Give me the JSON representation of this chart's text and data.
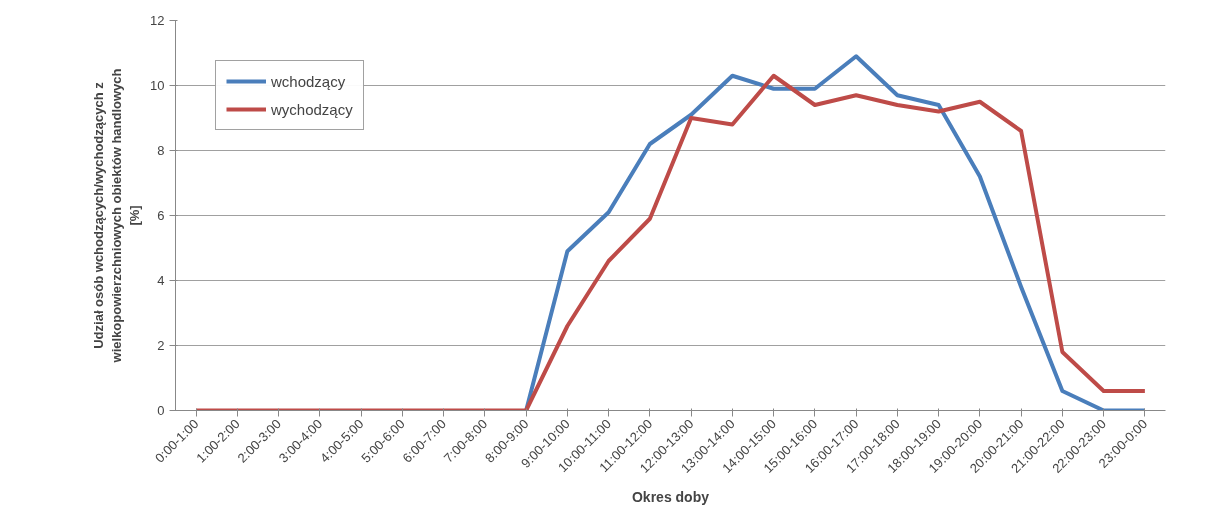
{
  "chart_data": {
    "type": "line",
    "xlabel": "Okres doby",
    "ylabel": "Udział osób wchodzących/wychodzących z wielkopowierzchniowych obiektów handlowych [%]",
    "categories": [
      "0:00-1:00",
      "1:00-2:00",
      "2:00-3:00",
      "3:00-4:00",
      "4:00-5:00",
      "5:00-6:00",
      "6:00-7:00",
      "7:00-8:00",
      "8:00-9:00",
      "9:00-10:00",
      "10:00-11:00",
      "11:00-12:00",
      "12:00-13:00",
      "13:00-14:00",
      "14:00-15:00",
      "15:00-16:00",
      "16:00-17:00",
      "17:00-18:00",
      "18:00-19:00",
      "19:00-20:00",
      "20:00-21:00",
      "21:00-22:00",
      "22:00-23:00",
      "23:00-0:00"
    ],
    "series": [
      {
        "name": "wchodzący",
        "color": "#4a7ebb",
        "values": [
          null,
          null,
          null,
          null,
          null,
          null,
          null,
          null,
          0,
          4.9,
          6.1,
          8.2,
          9.1,
          10.3,
          9.9,
          9.9,
          10.9,
          9.7,
          9.4,
          7.2,
          3.8,
          0.6,
          0,
          0
        ]
      },
      {
        "name": "wychodzący",
        "color": "#be4b48",
        "values": [
          0,
          0,
          0,
          0,
          0,
          0,
          0,
          0,
          0,
          2.6,
          4.6,
          5.9,
          9.0,
          8.8,
          10.3,
          9.4,
          9.7,
          9.4,
          9.2,
          9.5,
          8.6,
          1.8,
          0.6,
          0.6
        ]
      }
    ],
    "ylim": [
      0,
      12
    ],
    "yticks": [
      0,
      2,
      4,
      6,
      8,
      10,
      12
    ],
    "grid": "y",
    "legend": "top left",
    "marker": "none",
    "line_style": "solid"
  }
}
